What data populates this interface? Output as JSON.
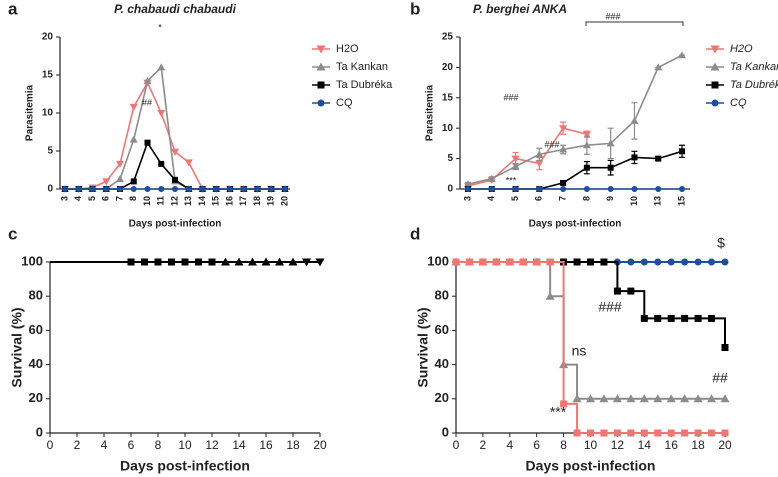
{
  "chart_data": [
    {
      "type": "line",
      "label": "a",
      "title": "P. chabaudi chabaudi",
      "xlabel": "Days post-infection",
      "ylabel": "Parasitemia",
      "categories": [
        "3",
        "4",
        "5",
        "6",
        "7",
        "8",
        "10",
        "11",
        "12",
        "13",
        "14",
        "15",
        "16",
        "17",
        "18",
        "19",
        "20"
      ],
      "ylim": [
        0,
        20
      ],
      "yticks": [
        0,
        5,
        10,
        15,
        20
      ],
      "legend": "right",
      "series": [
        {
          "name": "H2O",
          "color": "#f07575",
          "marker": "triangle-down",
          "values": [
            0,
            0,
            0.2,
            1,
            3.3,
            10.8,
            14,
            10,
            4.9,
            3.5,
            0,
            0,
            0,
            0,
            0,
            0,
            0
          ]
        },
        {
          "name": "Ta Kankan",
          "color": "#8c8c8c",
          "marker": "triangle",
          "values": [
            0,
            0,
            0,
            0,
            1.3,
            6.5,
            14.2,
            16,
            1,
            0,
            0,
            0,
            0,
            0,
            0,
            0,
            0
          ]
        },
        {
          "name": "Ta Dubréka",
          "color": "#000000",
          "marker": "square",
          "values": [
            0,
            0,
            0,
            0,
            0,
            1,
            6.1,
            3.3,
            1.2,
            0,
            0,
            0,
            0,
            0,
            0,
            0,
            0
          ]
        },
        {
          "name": "CQ",
          "color": "#1f4e9c",
          "marker": "circle",
          "values": [
            0,
            0,
            0,
            0,
            0,
            0,
            0,
            0,
            0,
            0,
            0,
            0,
            0,
            0,
            0,
            0,
            0
          ]
        }
      ],
      "annotations": [
        "*",
        "##"
      ]
    },
    {
      "type": "line",
      "label": "b",
      "title": "P. berghei ANKA",
      "xlabel": "Days post-infection",
      "ylabel": "Parasitemia",
      "categories": [
        "3",
        "4",
        "5",
        "6",
        "7",
        "8",
        "9",
        "10",
        "13",
        "15"
      ],
      "ylim": [
        0,
        25
      ],
      "yticks": [
        0,
        5,
        10,
        15,
        20,
        25
      ],
      "legend": "right",
      "series": [
        {
          "name": "H2O",
          "color": "#f07575",
          "marker": "triangle-down",
          "values": [
            0.5,
            1.5,
            5,
            4.2,
            10,
            9,
            null,
            null,
            null,
            null
          ],
          "errors": [
            0.3,
            0.3,
            1,
            1,
            1,
            0.5,
            null,
            null,
            null,
            null
          ]
        },
        {
          "name": "Ta Kankan",
          "color": "#8c8c8c",
          "marker": "triangle",
          "values": [
            0.8,
            1.7,
            3.7,
            5.7,
            6.5,
            7.2,
            7.5,
            11.2,
            20,
            22
          ],
          "errors": [
            0.3,
            0.3,
            0.5,
            1,
            0.7,
            1.5,
            2.5,
            3,
            0,
            0
          ]
        },
        {
          "name": "Ta Dubréka",
          "color": "#000000",
          "marker": "square",
          "values": [
            0,
            0,
            0,
            0,
            1,
            3.5,
            3.5,
            5.2,
            5,
            6.2
          ],
          "errors": [
            0,
            0,
            0,
            0,
            0.3,
            1,
            1.2,
            1,
            0.3,
            1
          ]
        },
        {
          "name": "CQ",
          "color": "#1f4e9c",
          "marker": "circle",
          "values": [
            0,
            0,
            0,
            0,
            0,
            0,
            0,
            0,
            0,
            0
          ],
          "errors": [
            0,
            0,
            0,
            0,
            0,
            0,
            0,
            0,
            0,
            0
          ]
        }
      ],
      "annotations": [
        "###",
        "***",
        "###",
        "###"
      ]
    },
    {
      "type": "step",
      "label": "c",
      "xlabel": "Days post-infection",
      "ylabel": "Survival (%)",
      "xlim": [
        0,
        20
      ],
      "xticks": [
        0,
        2,
        4,
        6,
        8,
        10,
        12,
        14,
        16,
        18,
        20
      ],
      "ylim": [
        0,
        100
      ],
      "yticks": [
        0,
        20,
        40,
        60,
        80,
        100
      ],
      "series": [
        {
          "color": "#000000",
          "marker": "none",
          "x": [
            0,
            20
          ],
          "values": [
            100,
            100
          ]
        },
        {
          "color": "#000000",
          "marker": "square",
          "x": [
            6,
            7,
            8,
            9,
            10,
            11,
            12
          ],
          "values": [
            100,
            100,
            100,
            100,
            100,
            100,
            100
          ]
        },
        {
          "color": "#000000",
          "marker": "triangle",
          "x": [
            13,
            14,
            15,
            16,
            17,
            18
          ],
          "values": [
            100,
            100,
            100,
            100,
            100,
            100
          ]
        },
        {
          "color": "#000000",
          "marker": "triangle-down",
          "x": [
            19,
            20
          ],
          "values": [
            100,
            100
          ]
        }
      ],
      "annotations": []
    },
    {
      "type": "step",
      "label": "d",
      "xlabel": "Days post-infection",
      "ylabel": "Survival (%)",
      "xlim": [
        0,
        20
      ],
      "xticks": [
        0,
        2,
        4,
        6,
        8,
        10,
        12,
        14,
        16,
        18,
        20
      ],
      "ylim": [
        0,
        100
      ],
      "yticks": [
        0,
        20,
        40,
        60,
        80,
        100
      ],
      "series": [
        {
          "color": "#1f4e9c",
          "marker": "circle",
          "x": [
            0,
            1,
            2,
            3,
            4,
            5,
            6,
            7,
            8,
            9,
            10,
            11,
            12,
            13,
            14,
            15,
            16,
            17,
            18,
            19,
            20
          ],
          "values": [
            100,
            100,
            100,
            100,
            100,
            100,
            100,
            100,
            100,
            100,
            100,
            100,
            100,
            100,
            100,
            100,
            100,
            100,
            100,
            100,
            100
          ]
        },
        {
          "color": "#000000",
          "marker": "square",
          "x": [
            0,
            1,
            2,
            3,
            4,
            5,
            6,
            7,
            8,
            9,
            10,
            11,
            12,
            13,
            14,
            15,
            16,
            17,
            18,
            19,
            20
          ],
          "values": [
            100,
            100,
            100,
            100,
            100,
            100,
            100,
            100,
            100,
            100,
            100,
            100,
            83,
            83,
            67,
            67,
            67,
            67,
            67,
            67,
            50
          ]
        },
        {
          "color": "#8c8c8c",
          "marker": "triangle",
          "x": [
            0,
            1,
            2,
            3,
            4,
            5,
            6,
            7,
            8,
            9,
            10,
            11,
            12,
            13,
            14,
            15,
            16,
            17,
            18,
            19,
            20
          ],
          "values": [
            100,
            100,
            100,
            100,
            100,
            100,
            100,
            80,
            40,
            20,
            20,
            20,
            20,
            20,
            20,
            20,
            20,
            20,
            20,
            20,
            20
          ]
        },
        {
          "color": "#f07575",
          "marker": "square",
          "x": [
            0,
            1,
            2,
            3,
            4,
            5,
            6,
            7,
            8,
            9,
            10,
            11,
            12,
            13,
            14,
            15,
            16,
            17,
            18,
            19,
            20
          ],
          "values": [
            100,
            100,
            100,
            100,
            100,
            100,
            100,
            100,
            17,
            0,
            0,
            0,
            0,
            0,
            0,
            0,
            0,
            0,
            0,
            0,
            0
          ]
        }
      ],
      "annotations": [
        "$",
        "###",
        "ns",
        "##",
        "***"
      ]
    }
  ]
}
